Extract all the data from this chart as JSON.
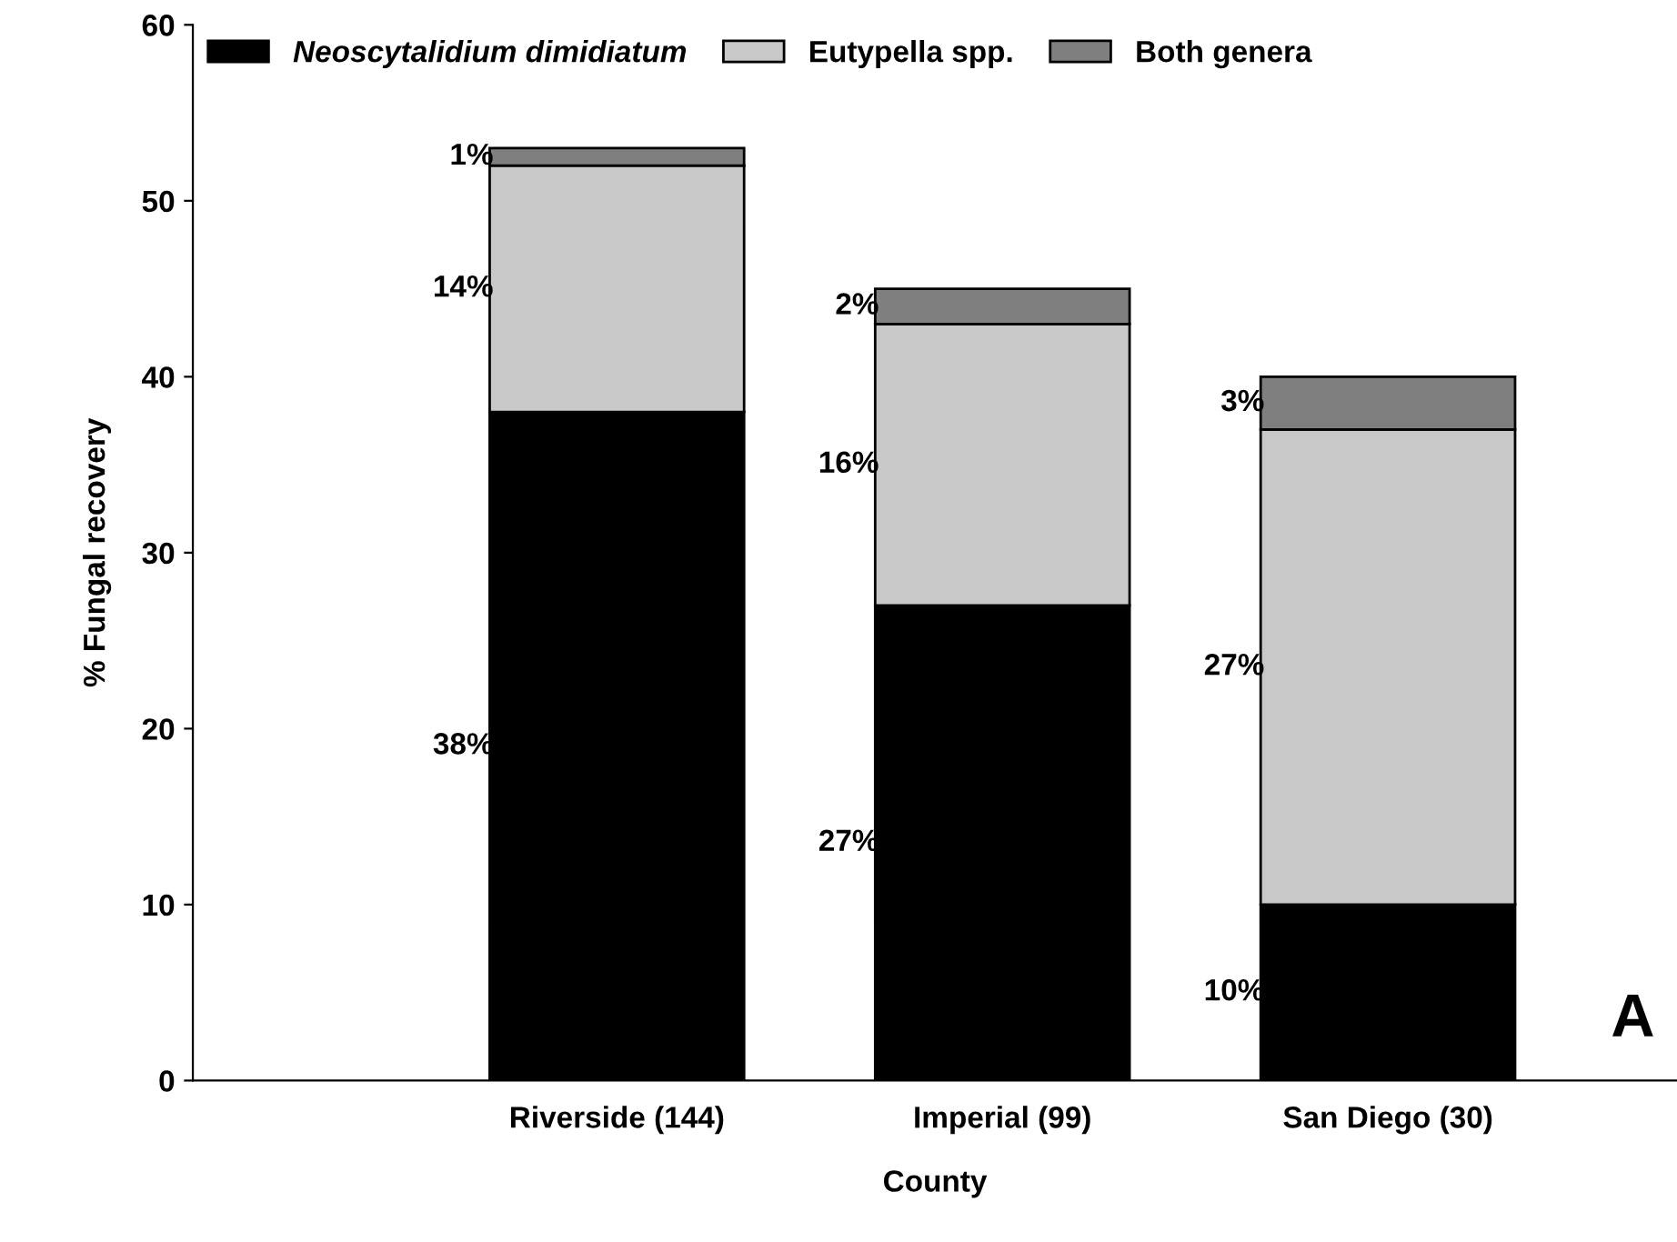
{
  "chart_data": {
    "type": "bar",
    "stacked": true,
    "xlabel": "County",
    "ylabel": "% Fungal recovery",
    "categories": [
      "Riverside (144)",
      "Imperial (99)",
      "San Diego (30)"
    ],
    "series": [
      {
        "name": "Neoscytalidium dimidiatum",
        "color": "#000000",
        "values": [
          38,
          27,
          10
        ],
        "value_labels": [
          "38%",
          "27%",
          "10%"
        ]
      },
      {
        "name": "Eutypella spp.",
        "color": "#c8c8c8",
        "values": [
          14,
          16,
          27
        ],
        "value_labels": [
          "14%",
          "16%",
          "27%"
        ]
      },
      {
        "name": "Both genera",
        "color": "#7f7f7f",
        "values": [
          1,
          2,
          3
        ],
        "value_labels": [
          "1%",
          "2%",
          "3%"
        ]
      }
    ],
    "ylim": [
      0,
      60
    ],
    "yticks": [
      0,
      10,
      20,
      30,
      40,
      50,
      60
    ],
    "grid": false,
    "legend": "top left",
    "annotations": [
      "A"
    ]
  }
}
